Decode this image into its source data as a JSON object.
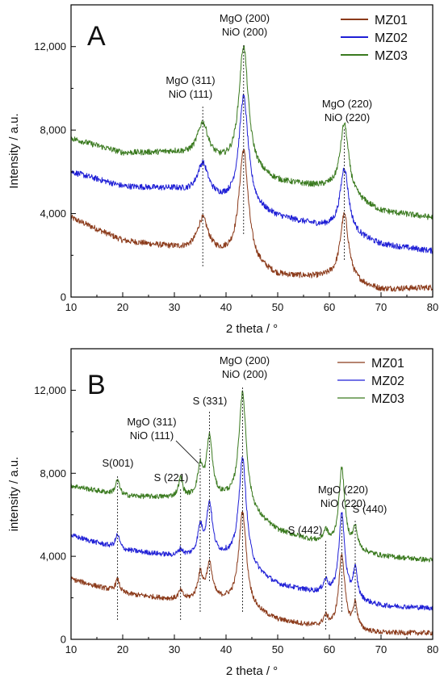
{
  "chart_data": [
    {
      "type": "line",
      "panel_label": "A",
      "xlabel": "2 theta / °",
      "ylabel": "Intensity / a.u.",
      "xlim": [
        10,
        80
      ],
      "ylim": [
        0,
        14000
      ],
      "x_ticks": [
        "10",
        "20",
        "30",
        "40",
        "50",
        "60",
        "70",
        "80"
      ],
      "y_ticks": [
        "0",
        "4,000",
        "8,000",
        "12,000"
      ],
      "grid": false,
      "legend_position": "top-right",
      "series": [
        {
          "name": "MZ01",
          "color": "#8b3a1a",
          "baseline": [
            [
              10,
              3800
            ],
            [
              20,
              2700
            ],
            [
              30,
              2350
            ],
            [
              40,
              1900
            ],
            [
              50,
              1000
            ],
            [
              60,
              900
            ],
            [
              70,
              350
            ],
            [
              80,
              450
            ]
          ],
          "peaks": [
            {
              "center": 35.5,
              "height": 1600,
              "width": 1.3
            },
            {
              "center": 43.4,
              "height": 5400,
              "width": 1.1
            },
            {
              "center": 62.9,
              "height": 3200,
              "width": 1.0
            }
          ]
        },
        {
          "name": "MZ02",
          "color": "#1f1fd6",
          "baseline": [
            [
              10,
              6000
            ],
            [
              20,
              5300
            ],
            [
              30,
              5150
            ],
            [
              40,
              4500
            ],
            [
              50,
              3800
            ],
            [
              60,
              3300
            ],
            [
              70,
              2500
            ],
            [
              80,
              2200
            ]
          ],
          "peaks": [
            {
              "center": 35.5,
              "height": 1550,
              "width": 1.3
            },
            {
              "center": 43.4,
              "height": 5300,
              "width": 1.1
            },
            {
              "center": 62.9,
              "height": 3100,
              "width": 1.0
            }
          ]
        },
        {
          "name": "MZ03",
          "color": "#3a7a1f",
          "baseline": [
            [
              10,
              7600
            ],
            [
              20,
              6900
            ],
            [
              30,
              6900
            ],
            [
              40,
              6300
            ],
            [
              50,
              5500
            ],
            [
              60,
              5200
            ],
            [
              70,
              4100
            ],
            [
              80,
              3800
            ]
          ],
          "peaks": [
            {
              "center": 35.5,
              "height": 1700,
              "width": 1.3
            },
            {
              "center": 43.4,
              "height": 5950,
              "width": 1.1
            },
            {
              "center": 62.9,
              "height": 3400,
              "width": 1.0
            }
          ]
        }
      ],
      "annotations": [
        {
          "lines": [
            "MgO (311)",
            "NiO (111)"
          ],
          "x": 35.5
        },
        {
          "lines": [
            "MgO (200)",
            "NiO (200)"
          ],
          "x": 43.4
        },
        {
          "lines": [
            "MgO (220)",
            "NiO (220)"
          ],
          "x": 62.9
        }
      ]
    },
    {
      "type": "line",
      "panel_label": "B",
      "xlabel": "2 theta / °",
      "ylabel": "intensity / a.u.",
      "xlim": [
        10,
        80
      ],
      "ylim": [
        0,
        14000
      ],
      "x_ticks": [
        "10",
        "20",
        "30",
        "40",
        "50",
        "60",
        "70",
        "80"
      ],
      "y_ticks": [
        "0",
        "4,000",
        "8,000",
        "12,000"
      ],
      "grid": false,
      "legend_position": "top-right",
      "series": [
        {
          "name": "MZ01",
          "color": "#8b3a1a",
          "baseline": [
            [
              10,
              2900
            ],
            [
              20,
              2200
            ],
            [
              30,
              1900
            ],
            [
              40,
              1800
            ],
            [
              50,
              900
            ],
            [
              60,
              500
            ],
            [
              70,
              300
            ],
            [
              80,
              300
            ]
          ],
          "peaks": [
            {
              "center": 19.0,
              "height": 600,
              "width": 0.5
            },
            {
              "center": 31.2,
              "height": 400,
              "width": 0.5
            },
            {
              "center": 35.0,
              "height": 1200,
              "width": 0.6
            },
            {
              "center": 36.8,
              "height": 1700,
              "width": 0.7
            },
            {
              "center": 43.2,
              "height": 4600,
              "width": 0.9
            },
            {
              "center": 59.3,
              "height": 500,
              "width": 0.6
            },
            {
              "center": 62.4,
              "height": 3600,
              "width": 0.7
            },
            {
              "center": 65.0,
              "height": 1200,
              "width": 0.5
            }
          ]
        },
        {
          "name": "MZ02",
          "color": "#1f1fd6",
          "baseline": [
            [
              10,
              5000
            ],
            [
              20,
              4300
            ],
            [
              30,
              4000
            ],
            [
              40,
              3900
            ],
            [
              50,
              2600
            ],
            [
              60,
              2100
            ],
            [
              70,
              1600
            ],
            [
              80,
              1500
            ]
          ],
          "peaks": [
            {
              "center": 19.0,
              "height": 650,
              "width": 0.5
            },
            {
              "center": 31.2,
              "height": 300,
              "width": 0.5
            },
            {
              "center": 35.0,
              "height": 1300,
              "width": 0.6
            },
            {
              "center": 36.8,
              "height": 2500,
              "width": 0.7
            },
            {
              "center": 43.2,
              "height": 5200,
              "width": 0.9
            },
            {
              "center": 59.3,
              "height": 600,
              "width": 0.6
            },
            {
              "center": 62.4,
              "height": 4000,
              "width": 0.7
            },
            {
              "center": 65.0,
              "height": 1400,
              "width": 0.5
            }
          ]
        },
        {
          "name": "MZ03",
          "color": "#3a7a1f",
          "baseline": [
            [
              10,
              7400
            ],
            [
              20,
              6900
            ],
            [
              30,
              6800
            ],
            [
              40,
              6700
            ],
            [
              50,
              5200
            ],
            [
              60,
              4500
            ],
            [
              70,
              4000
            ],
            [
              80,
              3800
            ]
          ],
          "peaks": [
            {
              "center": 19.0,
              "height": 700,
              "width": 0.5
            },
            {
              "center": 31.2,
              "height": 900,
              "width": 0.5
            },
            {
              "center": 35.0,
              "height": 1400,
              "width": 0.6
            },
            {
              "center": 36.8,
              "height": 2900,
              "width": 0.7
            },
            {
              "center": 43.2,
              "height": 5600,
              "width": 0.9
            },
            {
              "center": 59.3,
              "height": 600,
              "width": 0.6
            },
            {
              "center": 62.4,
              "height": 3800,
              "width": 0.7
            },
            {
              "center": 65.0,
              "height": 1000,
              "width": 0.5
            }
          ]
        }
      ],
      "annotations": [
        {
          "lines": [
            "S(001)"
          ],
          "x": 19.0
        },
        {
          "lines": [
            "S (221)"
          ],
          "x": 31.2
        },
        {
          "lines": [
            "MgO (311)",
            "NiO (111)"
          ],
          "x": 35.0
        },
        {
          "lines": [
            "S (331)"
          ],
          "x": 36.8
        },
        {
          "lines": [
            "MgO (200)",
            "NiO (200)"
          ],
          "x": 43.2
        },
        {
          "lines": [
            "S (442)"
          ],
          "x": 59.3
        },
        {
          "lines": [
            "MgO (220)",
            "NiO (220)"
          ],
          "x": 62.4
        },
        {
          "lines": [
            "S (440)"
          ],
          "x": 65.0
        }
      ]
    }
  ]
}
